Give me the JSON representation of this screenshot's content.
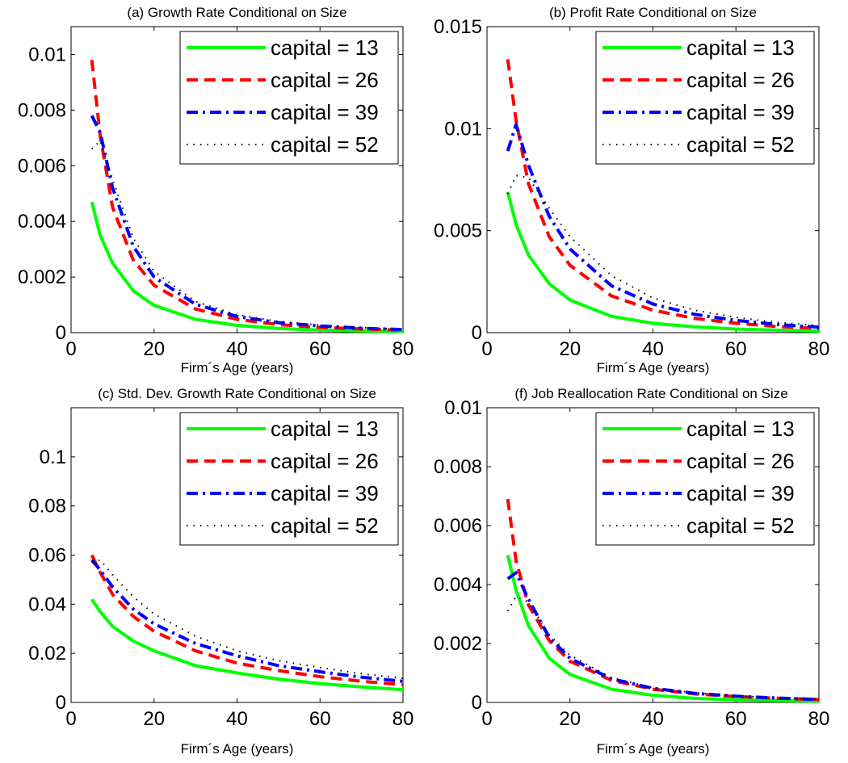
{
  "chart_data": [
    {
      "type": "line",
      "title": "(a) Growth Rate Conditional on Size",
      "xlabel": "Firm´s Age (years)",
      "ylabel": "",
      "xlim": [
        0,
        80
      ],
      "ylim": [
        0,
        0.011
      ],
      "xticks": [
        0,
        20,
        40,
        60,
        80
      ],
      "yticks": [
        0,
        0.002,
        0.004,
        0.006,
        0.008,
        0.01
      ],
      "legend_position": "top-right",
      "series": [
        {
          "name": "capital = 13",
          "color": "#00ff00",
          "style": "solid",
          "x": [
            5,
            7,
            10,
            15,
            20,
            30,
            40,
            50,
            60,
            70,
            80
          ],
          "y": [
            0.0047,
            0.0035,
            0.0025,
            0.0015,
            0.00098,
            0.00048,
            0.00026,
            0.00015,
            9e-05,
            6e-05,
            4e-05
          ]
        },
        {
          "name": "capital = 26",
          "color": "#ff0000",
          "style": "dashed",
          "x": [
            5,
            7,
            10,
            15,
            20,
            30,
            40,
            50,
            60,
            70,
            80
          ],
          "y": [
            0.0098,
            0.0071,
            0.0045,
            0.0026,
            0.0017,
            0.00085,
            0.00048,
            0.00029,
            0.00019,
            0.00013,
            9e-05
          ]
        },
        {
          "name": "capital = 39",
          "color": "#0000ff",
          "style": "dashdot",
          "x": [
            5,
            7,
            10,
            15,
            20,
            30,
            40,
            50,
            60,
            70,
            80
          ],
          "y": [
            0.0078,
            0.0072,
            0.0052,
            0.0031,
            0.002,
            0.00102,
            0.00058,
            0.00036,
            0.00024,
            0.00016,
            0.00011
          ]
        },
        {
          "name": "capital = 52",
          "color": "#000000",
          "style": "dotted",
          "x": [
            5,
            7,
            10,
            15,
            20,
            30,
            40,
            50,
            60,
            70,
            80
          ],
          "y": [
            0.0066,
            0.0069,
            0.0055,
            0.0034,
            0.0022,
            0.00112,
            0.00064,
            0.0004,
            0.00027,
            0.00018,
            0.00012
          ]
        }
      ]
    },
    {
      "type": "line",
      "title": "(b) Profit Rate Conditional on Size",
      "xlabel": "Firm´s Age (years)",
      "ylabel": "",
      "xlim": [
        0,
        80
      ],
      "ylim": [
        0,
        0.015
      ],
      "xticks": [
        0,
        20,
        40,
        60,
        80
      ],
      "yticks": [
        0,
        0.005,
        0.01,
        0.015
      ],
      "legend_position": "top-right",
      "series": [
        {
          "name": "capital = 13",
          "color": "#00ff00",
          "style": "solid",
          "x": [
            5,
            7,
            10,
            15,
            20,
            30,
            40,
            50,
            60,
            70,
            80
          ],
          "y": [
            0.0069,
            0.0053,
            0.0038,
            0.0024,
            0.0016,
            0.0008,
            0.00046,
            0.00028,
            0.00018,
            0.00012,
            8e-05
          ]
        },
        {
          "name": "capital = 26",
          "color": "#ff0000",
          "style": "dashed",
          "x": [
            5,
            7,
            10,
            15,
            20,
            30,
            40,
            50,
            60,
            70,
            80
          ],
          "y": [
            0.0134,
            0.0104,
            0.0073,
            0.0047,
            0.0033,
            0.0018,
            0.0011,
            0.0007,
            0.00046,
            0.0003,
            0.0002
          ]
        },
        {
          "name": "capital = 39",
          "color": "#0000ff",
          "style": "dashdot",
          "x": [
            5,
            7,
            10,
            15,
            20,
            30,
            40,
            50,
            60,
            70,
            80
          ],
          "y": [
            0.0089,
            0.0102,
            0.0082,
            0.0057,
            0.0041,
            0.0023,
            0.0014,
            0.0009,
            0.0006,
            0.0004,
            0.00027
          ]
        },
        {
          "name": "capital = 52",
          "color": "#000000",
          "style": "dotted",
          "x": [
            5,
            7,
            10,
            15,
            20,
            30,
            40,
            50,
            60,
            70,
            80
          ],
          "y": [
            0.0068,
            0.0077,
            0.0076,
            0.0061,
            0.0047,
            0.0028,
            0.0017,
            0.0011,
            0.00075,
            0.0005,
            0.00035
          ]
        }
      ]
    },
    {
      "type": "line",
      "title": "(c) Std. Dev. Growth Rate Conditional on Size",
      "xlabel": "Firm´s Age (years)",
      "ylabel": "",
      "xlim": [
        0,
        80
      ],
      "ylim": [
        0,
        0.12
      ],
      "xticks": [
        0,
        20,
        40,
        60,
        80
      ],
      "yticks": [
        0,
        0.02,
        0.04,
        0.06,
        0.08,
        0.1
      ],
      "legend_position": "top-right",
      "series": [
        {
          "name": "capital = 13",
          "color": "#00ff00",
          "style": "solid",
          "x": [
            5,
            7,
            10,
            15,
            20,
            30,
            40,
            50,
            60,
            70,
            80
          ],
          "y": [
            0.042,
            0.037,
            0.031,
            0.025,
            0.021,
            0.015,
            0.012,
            0.0095,
            0.0077,
            0.0063,
            0.0052
          ]
        },
        {
          "name": "capital = 26",
          "color": "#ff0000",
          "style": "dashed",
          "x": [
            5,
            7,
            10,
            15,
            20,
            30,
            40,
            50,
            60,
            70,
            80
          ],
          "y": [
            0.06,
            0.053,
            0.044,
            0.035,
            0.029,
            0.021,
            0.016,
            0.013,
            0.0105,
            0.0086,
            0.0072
          ]
        },
        {
          "name": "capital = 39",
          "color": "#0000ff",
          "style": "dashdot",
          "x": [
            5,
            7,
            10,
            15,
            20,
            30,
            40,
            50,
            60,
            70,
            80
          ],
          "y": [
            0.058,
            0.054,
            0.047,
            0.038,
            0.032,
            0.024,
            0.019,
            0.015,
            0.0125,
            0.0103,
            0.0086
          ]
        },
        {
          "name": "capital = 52",
          "color": "#000000",
          "style": "dotted",
          "x": [
            5,
            7,
            10,
            15,
            20,
            30,
            40,
            50,
            60,
            70,
            80
          ],
          "y": [
            0.057,
            0.058,
            0.052,
            0.043,
            0.036,
            0.027,
            0.021,
            0.017,
            0.0142,
            0.0117,
            0.0098
          ]
        }
      ]
    },
    {
      "type": "line",
      "title": "(f) Job Reallocation Rate Conditional on Size",
      "xlabel": "Firm´s Age (years)",
      "ylabel": "",
      "xlim": [
        0,
        80
      ],
      "ylim": [
        0,
        0.01
      ],
      "xticks": [
        0,
        20,
        40,
        60,
        80
      ],
      "yticks": [
        0,
        0.002,
        0.004,
        0.006,
        0.008,
        0.01
      ],
      "legend_position": "top-right",
      "series": [
        {
          "name": "capital = 13",
          "color": "#00ff00",
          "style": "solid",
          "x": [
            5,
            7,
            10,
            15,
            20,
            30,
            40,
            50,
            60,
            70,
            80
          ],
          "y": [
            0.005,
            0.0038,
            0.0026,
            0.0015,
            0.00095,
            0.00045,
            0.00024,
            0.00014,
            9e-05,
            6e-05,
            4e-05
          ]
        },
        {
          "name": "capital = 26",
          "color": "#ff0000",
          "style": "dashed",
          "x": [
            5,
            7,
            10,
            15,
            20,
            30,
            40,
            50,
            60,
            70,
            80
          ],
          "y": [
            0.0069,
            0.0048,
            0.0033,
            0.0021,
            0.0014,
            0.00075,
            0.00045,
            0.00029,
            0.0002,
            0.00014,
            0.0001
          ]
        },
        {
          "name": "capital = 39",
          "color": "#0000ff",
          "style": "dashdot",
          "x": [
            5,
            7,
            10,
            15,
            20,
            30,
            40,
            50,
            60,
            70,
            80
          ],
          "y": [
            0.0042,
            0.0044,
            0.0035,
            0.0022,
            0.0015,
            0.0008,
            0.00048,
            0.00031,
            0.00021,
            0.00015,
            0.0001
          ]
        },
        {
          "name": "capital = 52",
          "color": "#000000",
          "style": "dotted",
          "x": [
            5,
            7,
            10,
            15,
            20,
            30,
            40,
            50,
            60,
            70,
            80
          ],
          "y": [
            0.0031,
            0.0036,
            0.0034,
            0.0023,
            0.0016,
            0.00084,
            0.0005,
            0.00033,
            0.00022,
            0.00016,
            0.00011
          ]
        }
      ]
    }
  ]
}
